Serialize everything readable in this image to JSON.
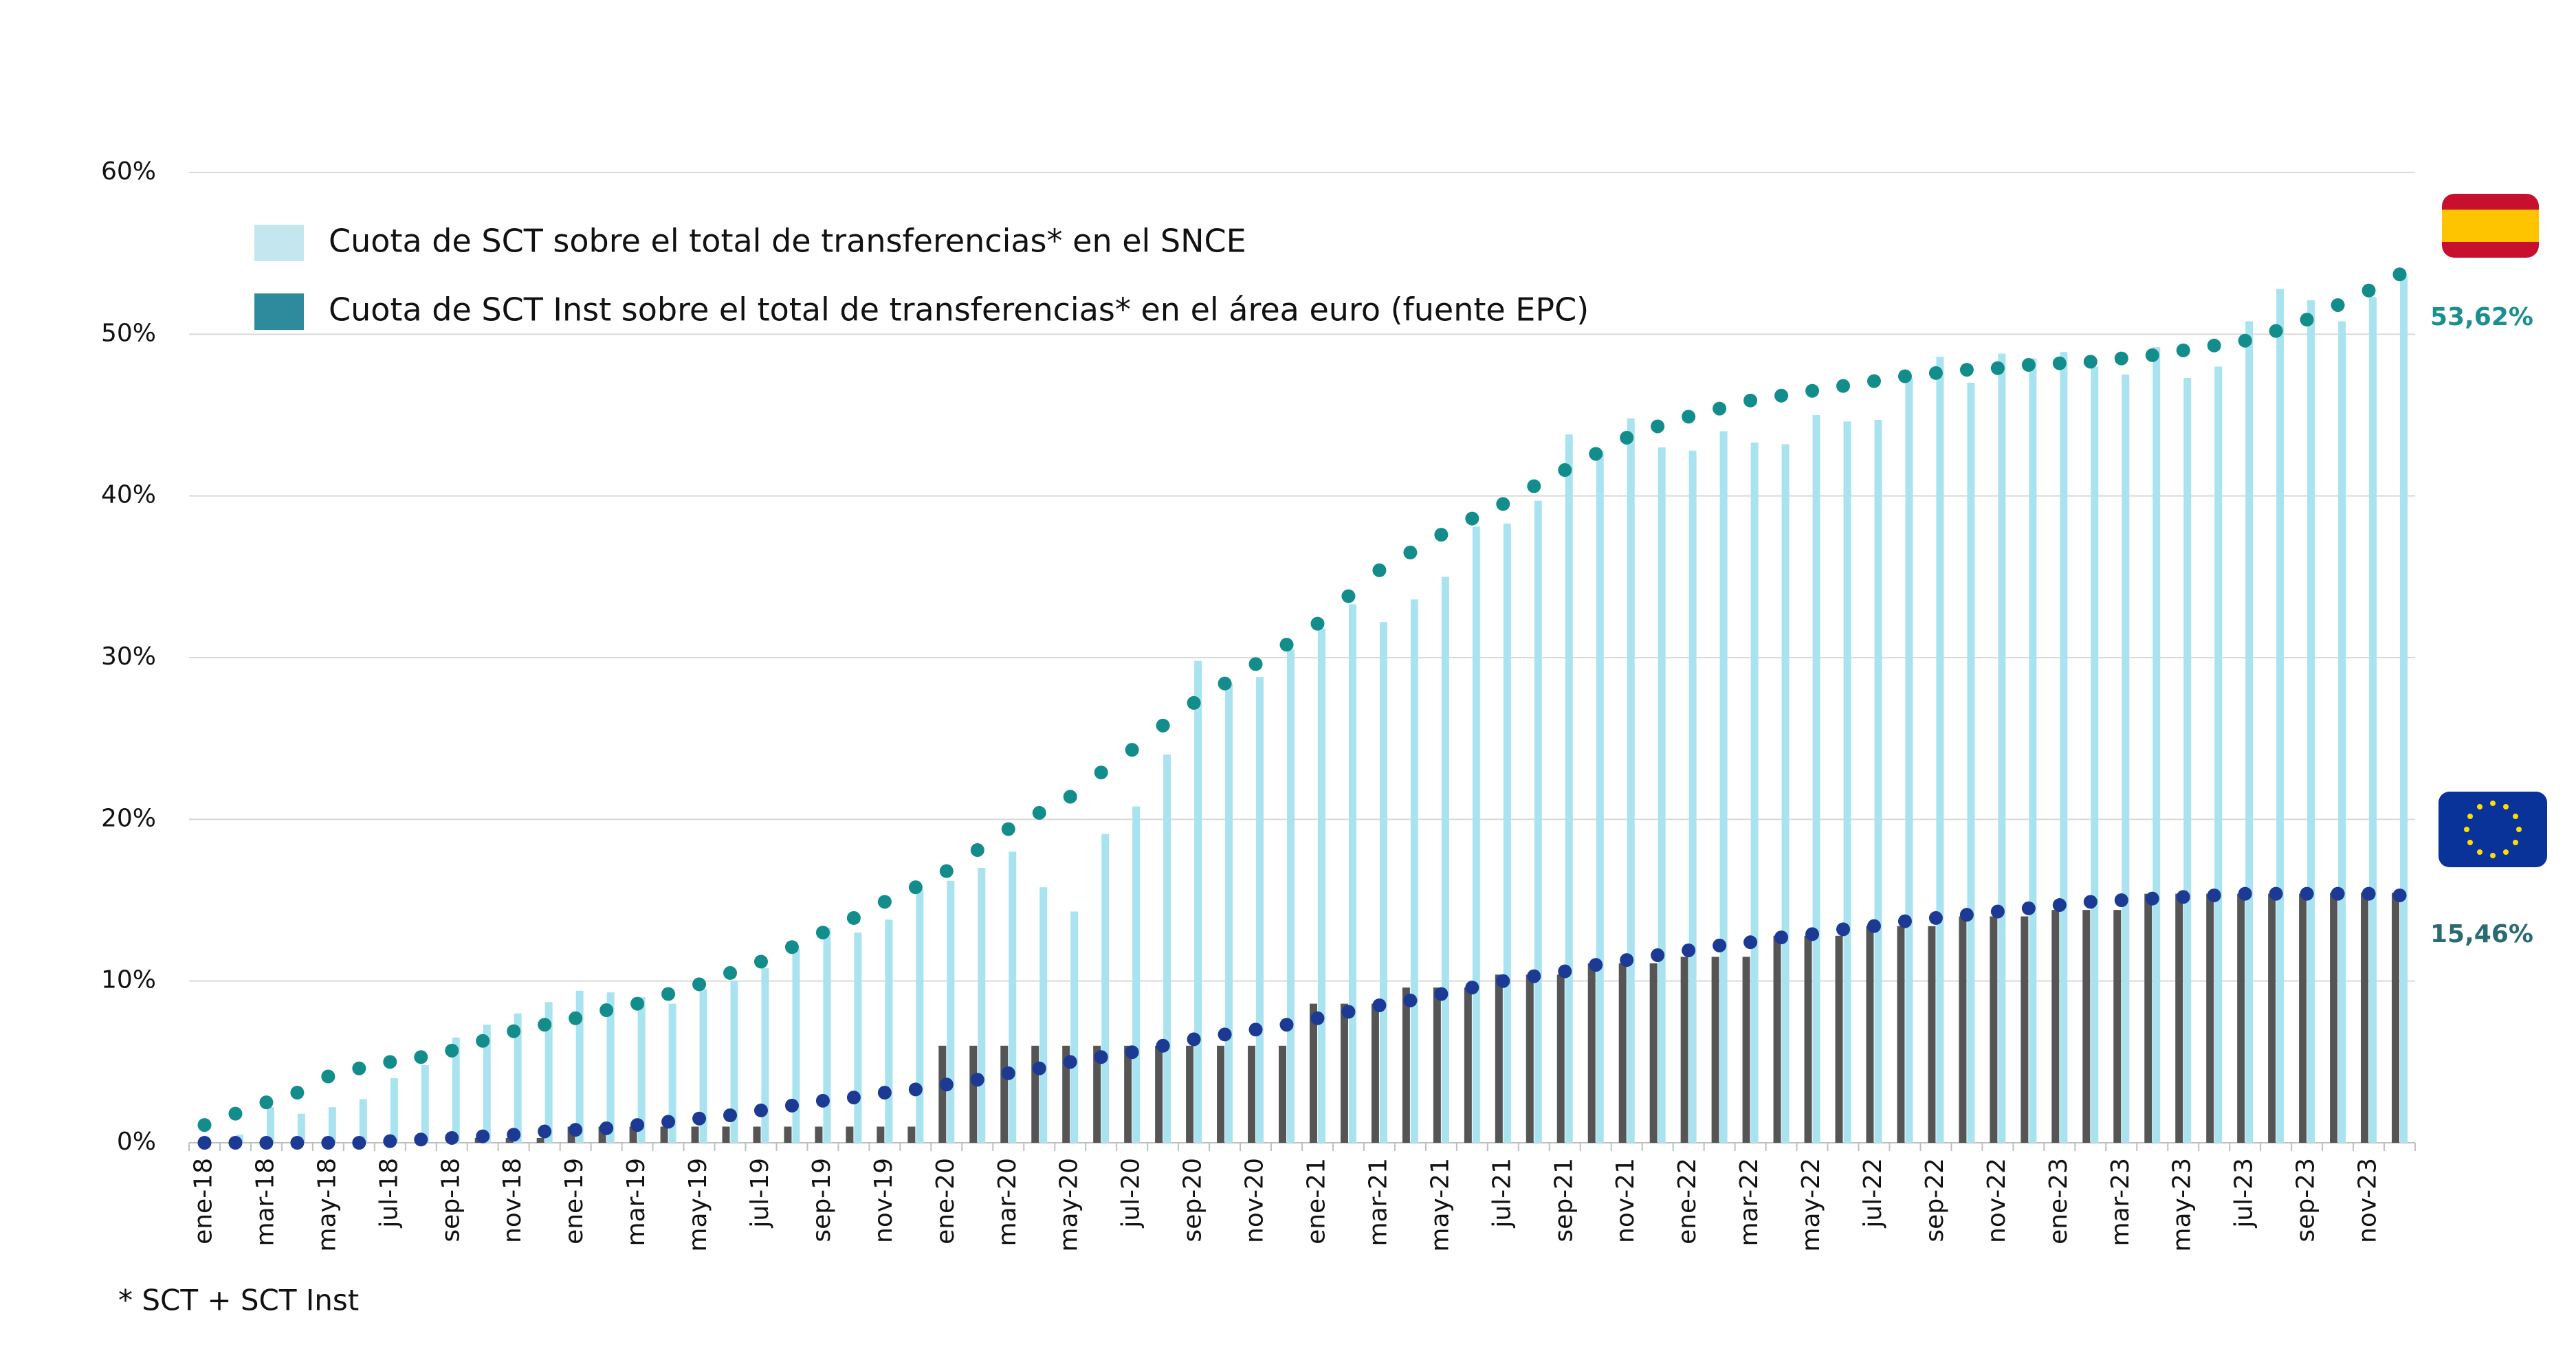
{
  "chart_data": {
    "type": "bar",
    "categories": [
      "ene-18",
      null,
      "mar-18",
      null,
      "may-18",
      null,
      "jul-18",
      null,
      "sep-18",
      null,
      "nov-18",
      null,
      "ene-19",
      null,
      "mar-19",
      null,
      "may-19",
      null,
      "jul-19",
      null,
      "sep-19",
      null,
      "nov-19",
      null,
      "ene-20",
      null,
      "mar-20",
      null,
      "may-20",
      null,
      "jul-20",
      null,
      "sep-20",
      null,
      "nov-20",
      null,
      "ene-21",
      null,
      "mar-21",
      null,
      "may-21",
      null,
      "jul-21",
      null,
      "sep-21",
      null,
      "nov-21",
      null,
      "ene-22",
      null,
      "mar-22",
      null,
      "may-22",
      null,
      "jul-22",
      null,
      "sep-22",
      null,
      "nov-22",
      null,
      "ene-23",
      null,
      "mar-23",
      null,
      "may-23",
      null,
      "jul-23",
      null,
      "sep-23",
      null,
      "nov-23",
      null
    ],
    "ylim": [
      0,
      60
    ],
    "yticks": [
      {
        "value": 0,
        "label": "0%"
      },
      {
        "value": 10,
        "label": "10%"
      },
      {
        "value": 20,
        "label": "20%"
      },
      {
        "value": 30,
        "label": "30%"
      },
      {
        "value": 40,
        "label": "40%"
      },
      {
        "value": 50,
        "label": "50%"
      },
      {
        "value": 60,
        "label": "60%"
      }
    ],
    "grid": true,
    "series": [
      {
        "name": "Cuota de SCT sobre el total de transferencias* en el SNCE",
        "type": "bar",
        "color": "#a9e3f0",
        "legend_color": "#c4e6ee",
        "label_color": "#1a8f8f",
        "values": [
          0,
          0.5,
          2.2,
          1.8,
          2.2,
          2.7,
          4.0,
          4.8,
          6.5,
          7.3,
          8.0,
          8.7,
          9.4,
          9.3,
          9.0,
          8.6,
          9.5,
          10.0,
          10.8,
          12.0,
          13.3,
          13.0,
          13.8,
          15.7,
          16.2,
          17.0,
          18.0,
          15.8,
          14.3,
          19.1,
          20.8,
          24.0,
          29.8,
          28.4,
          28.8,
          30.5,
          31.8,
          33.3,
          32.2,
          33.6,
          35.0,
          38.1,
          38.3,
          39.7,
          43.8,
          42.8,
          44.8,
          43.0,
          42.8,
          44.0,
          43.3,
          43.2,
          45.0,
          44.6,
          44.7,
          47.3,
          48.6,
          47.0,
          48.8,
          48.5,
          48.9,
          48.0,
          47.5,
          49.2,
          47.3,
          48.0,
          50.8,
          52.8,
          52.1,
          50.8,
          52.3,
          53.62
        ],
        "value_labels": [
          null,
          null,
          null,
          null,
          null,
          null,
          null,
          null,
          null,
          null,
          null,
          null,
          null,
          null,
          null,
          null,
          null,
          null,
          null,
          null,
          null,
          null,
          null,
          null,
          null,
          null,
          null,
          null,
          null,
          null,
          null,
          null,
          null,
          null,
          null,
          null,
          null,
          null,
          null,
          null,
          null,
          null,
          null,
          null,
          null,
          null,
          null,
          null,
          null,
          null,
          null,
          null,
          null,
          null,
          null,
          null,
          null,
          null,
          null,
          null,
          null,
          null,
          null,
          null,
          null,
          null,
          null,
          null,
          null,
          null,
          null,
          "53,62%"
        ]
      },
      {
        "name": "Cuota de SCT Inst sobre el total de transferencias* en el área euro (fuente EPC)",
        "type": "bar",
        "color": "#555555",
        "legend_color": "#2e8b9e",
        "label_color": "#2b6a72",
        "values": [
          0,
          0,
          0,
          0,
          0,
          0,
          0,
          0,
          0,
          0.3,
          0.3,
          0.3,
          1.0,
          1.0,
          1.0,
          1.0,
          1.0,
          1.0,
          1.0,
          1.0,
          1.0,
          1.0,
          1.0,
          1.0,
          6.0,
          6.0,
          6.0,
          6.0,
          6.0,
          6.0,
          6.0,
          6.0,
          6.0,
          6.0,
          6.0,
          6.0,
          8.6,
          8.6,
          8.6,
          9.6,
          9.6,
          9.6,
          10.4,
          10.4,
          10.4,
          11.1,
          11.1,
          11.1,
          11.5,
          11.5,
          11.5,
          12.8,
          12.8,
          12.8,
          13.4,
          13.4,
          13.4,
          14.0,
          14.0,
          14.0,
          14.4,
          14.4,
          14.4,
          15.4,
          15.4,
          15.4,
          15.4,
          15.4,
          15.4,
          15.46,
          15.46,
          15.46
        ],
        "value_labels": [
          null,
          null,
          null,
          null,
          null,
          null,
          null,
          null,
          null,
          null,
          null,
          null,
          null,
          null,
          null,
          null,
          null,
          null,
          null,
          null,
          null,
          null,
          null,
          null,
          null,
          null,
          null,
          null,
          null,
          null,
          null,
          null,
          null,
          null,
          null,
          null,
          null,
          null,
          null,
          null,
          null,
          null,
          null,
          null,
          null,
          null,
          null,
          null,
          null,
          null,
          null,
          null,
          null,
          null,
          null,
          null,
          null,
          null,
          null,
          null,
          null,
          null,
          null,
          null,
          null,
          null,
          null,
          null,
          null,
          null,
          null,
          "15,46%"
        ]
      },
      {
        "type": "dots",
        "color": "#138c8c",
        "values": [
          1.1,
          1.8,
          2.5,
          3.1,
          4.1,
          4.6,
          5.0,
          5.3,
          5.7,
          6.3,
          6.9,
          7.3,
          7.7,
          8.2,
          8.6,
          9.2,
          9.8,
          10.5,
          11.2,
          12.1,
          13.0,
          13.9,
          14.9,
          15.8,
          16.8,
          18.1,
          19.4,
          20.4,
          21.4,
          22.9,
          24.3,
          25.8,
          27.2,
          28.4,
          29.6,
          30.8,
          32.1,
          33.8,
          35.4,
          36.5,
          37.6,
          38.6,
          39.5,
          40.6,
          41.6,
          42.6,
          43.6,
          44.3,
          44.9,
          45.4,
          45.9,
          46.2,
          46.5,
          46.8,
          47.1,
          47.4,
          47.6,
          47.8,
          47.9,
          48.1,
          48.2,
          48.3,
          48.5,
          48.7,
          49.0,
          49.3,
          49.6,
          50.2,
          50.9,
          51.8,
          52.7,
          53.7
        ]
      },
      {
        "type": "dots",
        "color": "#1c3a94",
        "values": [
          0,
          0,
          0,
          0,
          0,
          0,
          0.1,
          0.2,
          0.3,
          0.4,
          0.5,
          0.7,
          0.8,
          0.9,
          1.1,
          1.3,
          1.5,
          1.7,
          2.0,
          2.3,
          2.6,
          2.8,
          3.1,
          3.3,
          3.6,
          3.9,
          4.3,
          4.6,
          5.0,
          5.3,
          5.6,
          6.0,
          6.4,
          6.7,
          7.0,
          7.3,
          7.7,
          8.1,
          8.5,
          8.8,
          9.2,
          9.6,
          10.0,
          10.3,
          10.6,
          11.0,
          11.3,
          11.6,
          11.9,
          12.2,
          12.4,
          12.7,
          12.9,
          13.2,
          13.4,
          13.7,
          13.9,
          14.1,
          14.3,
          14.5,
          14.7,
          14.9,
          15.0,
          15.1,
          15.2,
          15.3,
          15.4,
          15.4,
          15.4,
          15.4,
          15.4,
          15.3
        ]
      }
    ],
    "footnote": "* SCT + SCT Inst"
  }
}
